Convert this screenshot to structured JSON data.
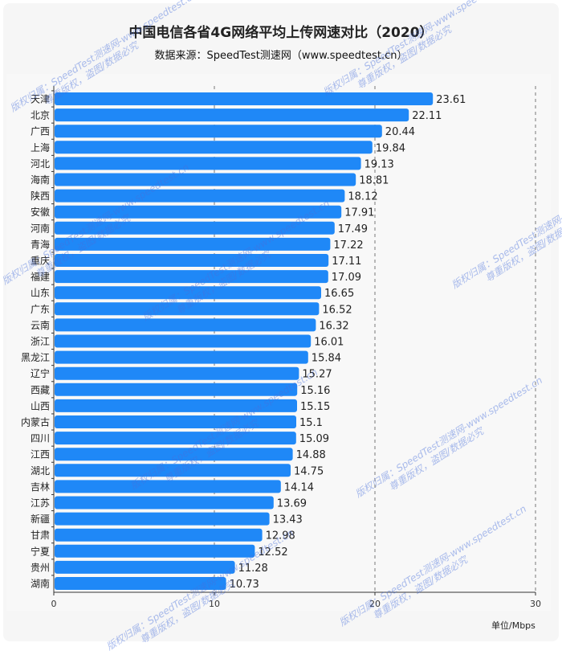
{
  "chart_data": {
    "type": "bar",
    "orientation": "horizontal",
    "title": "中国电信各省4G网络平均上传网速对比（2020）",
    "subtitle": "数据来源：SpeedTest测速网（www.speedtest.cn）",
    "unit_label": "单位/Mbps",
    "categories": [
      "天津",
      "北京",
      "广西",
      "上海",
      "河北",
      "海南",
      "陕西",
      "安徽",
      "河南",
      "青海",
      "重庆",
      "福建",
      "山东",
      "广东",
      "云南",
      "浙江",
      "黑龙江",
      "辽宁",
      "西藏",
      "山西",
      "内蒙古",
      "四川",
      "江西",
      "湖北",
      "吉林",
      "江苏",
      "新疆",
      "甘肃",
      "宁夏",
      "贵州",
      "湖南"
    ],
    "values": [
      23.61,
      22.11,
      20.44,
      19.84,
      19.13,
      18.81,
      18.12,
      17.91,
      17.49,
      17.22,
      17.11,
      17.09,
      16.65,
      16.52,
      16.32,
      16.01,
      15.84,
      15.27,
      15.16,
      15.15,
      15.1,
      15.09,
      14.88,
      14.75,
      14.14,
      13.69,
      13.43,
      12.98,
      12.52,
      11.28,
      10.73
    ],
    "xlim": [
      0,
      30
    ],
    "xticks": [
      "0",
      "10",
      "20",
      "30"
    ],
    "grid": "vertical dashed",
    "bar_color": "#1f88f7"
  },
  "watermark": {
    "line1": "版权归属：SpeedTest测速网-www.speedtest.cn",
    "line2": "尊重版权，盗图/数据必究"
  }
}
